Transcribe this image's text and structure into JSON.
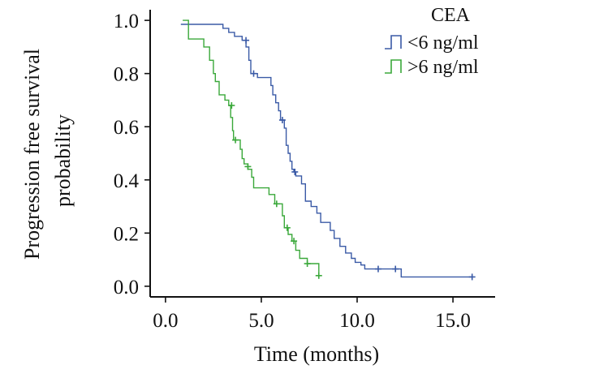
{
  "chart_data": {
    "type": "line",
    "subtype": "kaplan-meier step",
    "title": "",
    "xlabel": "Time (months)",
    "ylabel_lines": [
      "Progression free survival",
      "probability"
    ],
    "xlim": [
      -0.8,
      17.2
    ],
    "ylim": [
      -0.04,
      1.04
    ],
    "x_ticks": [
      {
        "value": 0,
        "label": "0.0"
      },
      {
        "value": 5,
        "label": "5.0"
      },
      {
        "value": 10,
        "label": "10.0"
      },
      {
        "value": 15,
        "label": "15.0"
      }
    ],
    "y_ticks": [
      {
        "value": 0,
        "label": "0.0"
      },
      {
        "value": 0.2,
        "label": "0.2"
      },
      {
        "value": 0.4,
        "label": "0.4"
      },
      {
        "value": 0.6,
        "label": "0.6"
      },
      {
        "value": 0.8,
        "label": "0.8"
      },
      {
        "value": 1.0,
        "label": "1.0"
      }
    ],
    "grid": false,
    "legend": {
      "title": "CEA",
      "position": "top-right"
    },
    "series": [
      {
        "name": "<6 ng/ml",
        "color": "#3a5aa6",
        "steps": [
          [
            0.8,
            0.985
          ],
          [
            2.5,
            0.985
          ],
          [
            3.0,
            0.97
          ],
          [
            3.3,
            0.955
          ],
          [
            3.6,
            0.94
          ],
          [
            4.0,
            0.925
          ],
          [
            4.2,
            0.9
          ],
          [
            4.35,
            0.85
          ],
          [
            4.45,
            0.8
          ],
          [
            4.8,
            0.785
          ],
          [
            5.5,
            0.755
          ],
          [
            5.6,
            0.72
          ],
          [
            5.75,
            0.69
          ],
          [
            5.9,
            0.66
          ],
          [
            6.0,
            0.625
          ],
          [
            6.2,
            0.595
          ],
          [
            6.3,
            0.53
          ],
          [
            6.4,
            0.5
          ],
          [
            6.5,
            0.47
          ],
          [
            6.6,
            0.44
          ],
          [
            6.7,
            0.43
          ],
          [
            6.8,
            0.415
          ],
          [
            7.1,
            0.385
          ],
          [
            7.3,
            0.32
          ],
          [
            7.6,
            0.3
          ],
          [
            7.9,
            0.275
          ],
          [
            8.1,
            0.24
          ],
          [
            8.6,
            0.21
          ],
          [
            8.8,
            0.18
          ],
          [
            9.1,
            0.15
          ],
          [
            9.4,
            0.125
          ],
          [
            9.7,
            0.105
          ],
          [
            9.9,
            0.09
          ],
          [
            10.2,
            0.08
          ],
          [
            10.4,
            0.065
          ],
          [
            12.3,
            0.035
          ],
          [
            16.0,
            0.035
          ]
        ],
        "censor_marks": [
          [
            4.2,
            0.925
          ],
          [
            4.6,
            0.8
          ],
          [
            6.1,
            0.625
          ],
          [
            6.75,
            0.43
          ],
          [
            11.1,
            0.065
          ],
          [
            12.0,
            0.065
          ],
          [
            16.0,
            0.035
          ]
        ]
      },
      {
        "name": ">6 ng/ml",
        "color": "#3aa83a",
        "steps": [
          [
            0.9,
            1.0
          ],
          [
            1.2,
            0.93
          ],
          [
            2.0,
            0.9
          ],
          [
            2.3,
            0.85
          ],
          [
            2.5,
            0.8
          ],
          [
            2.6,
            0.77
          ],
          [
            2.8,
            0.72
          ],
          [
            3.1,
            0.7
          ],
          [
            3.3,
            0.68
          ],
          [
            3.4,
            0.635
          ],
          [
            3.5,
            0.585
          ],
          [
            3.55,
            0.55
          ],
          [
            3.9,
            0.515
          ],
          [
            4.0,
            0.48
          ],
          [
            4.1,
            0.46
          ],
          [
            4.3,
            0.44
          ],
          [
            4.5,
            0.41
          ],
          [
            4.6,
            0.37
          ],
          [
            5.4,
            0.345
          ],
          [
            5.7,
            0.31
          ],
          [
            6.1,
            0.265
          ],
          [
            6.2,
            0.22
          ],
          [
            6.4,
            0.195
          ],
          [
            6.6,
            0.17
          ],
          [
            6.8,
            0.135
          ],
          [
            7.0,
            0.105
          ],
          [
            7.4,
            0.085
          ],
          [
            8.0,
            0.04
          ]
        ],
        "censor_marks": [
          [
            3.45,
            0.68
          ],
          [
            3.65,
            0.55
          ],
          [
            4.3,
            0.45
          ],
          [
            5.8,
            0.31
          ],
          [
            6.35,
            0.22
          ],
          [
            6.7,
            0.17
          ],
          [
            7.4,
            0.085
          ],
          [
            8.0,
            0.04
          ]
        ]
      }
    ]
  }
}
